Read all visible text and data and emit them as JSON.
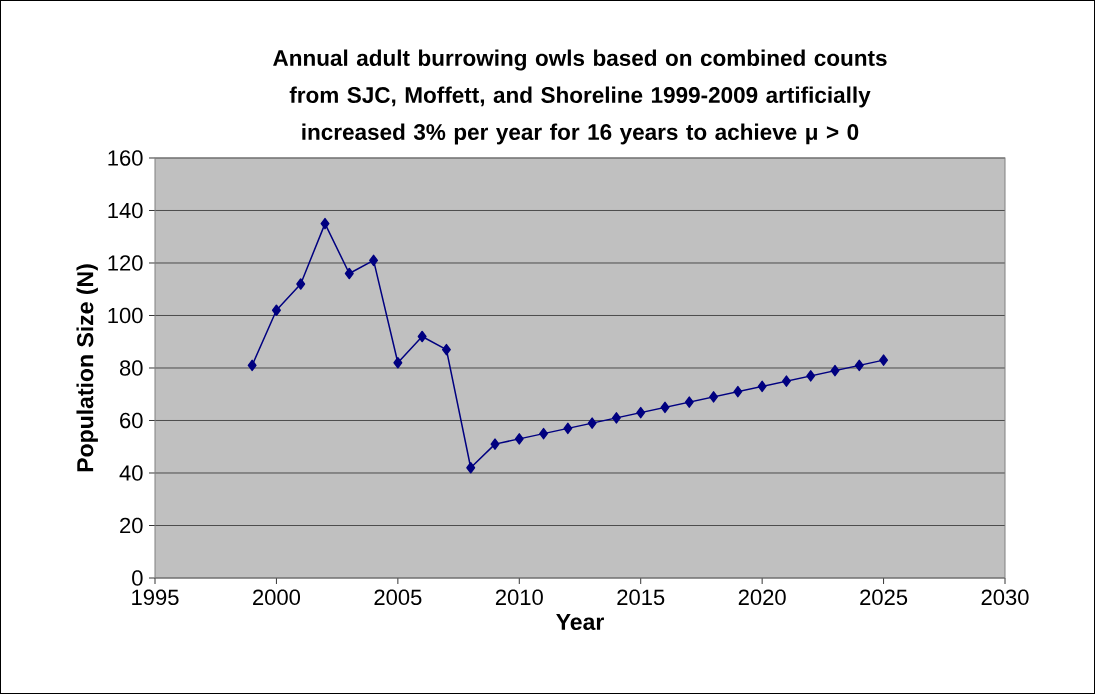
{
  "chart_data": {
    "type": "line",
    "title": "Annual adult burrowing owls based on combined counts from SJC, Moffett, and Shoreline 1999-2009 artificially increased 3% per year for 16 years to achieve μ > 0",
    "xlabel": "Year",
    "ylabel": "Population Size (N)",
    "x": [
      1999,
      2000,
      2001,
      2002,
      2003,
      2004,
      2005,
      2006,
      2007,
      2008,
      2009,
      2010,
      2011,
      2012,
      2013,
      2014,
      2015,
      2016,
      2017,
      2018,
      2019,
      2020,
      2021,
      2022,
      2023,
      2024,
      2025
    ],
    "series": [
      {
        "color": "#000080",
        "values": [
          81,
          102,
          112,
          135,
          116,
          121,
          82,
          92,
          87,
          42,
          51,
          53,
          55,
          57,
          59,
          61,
          63,
          65,
          67,
          69,
          71,
          73,
          75,
          77,
          79,
          81,
          83
        ]
      }
    ],
    "xlim": [
      1995,
      2030
    ],
    "ylim": [
      0,
      160
    ],
    "xticks": [
      1995,
      2000,
      2005,
      2010,
      2015,
      2020,
      2025,
      2030
    ],
    "yticks": [
      0,
      20,
      40,
      60,
      80,
      100,
      120,
      140,
      160
    ],
    "grid": "y",
    "marker": "diamond",
    "line_style": "solid"
  }
}
